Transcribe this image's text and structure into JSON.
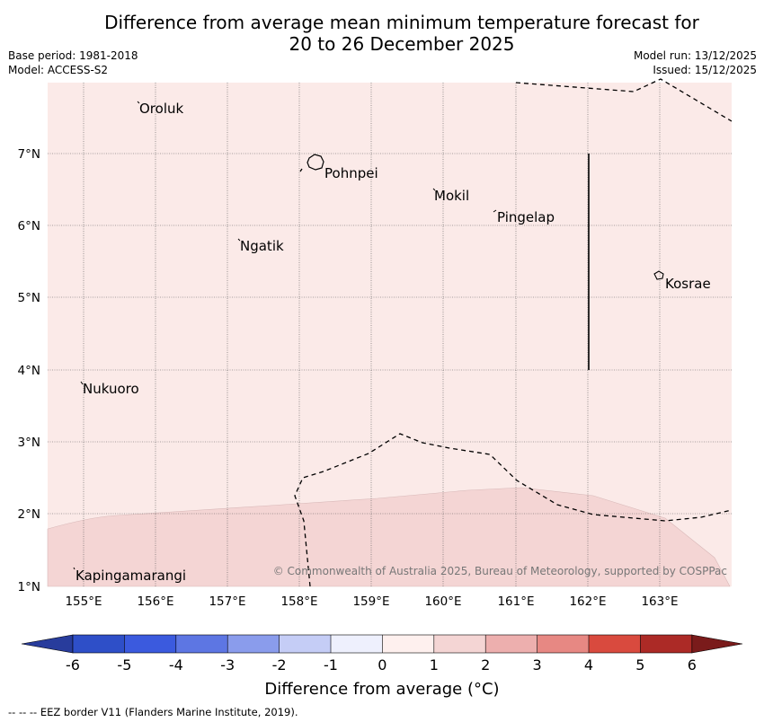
{
  "title": {
    "line1": "Difference from average mean minimum temperature forecast for",
    "line2": "20 to 26 December 2025"
  },
  "meta": {
    "base_period": "Base period: 1981-2018",
    "model": "Model: ACCESS-S2",
    "model_run": "Model run: 13/12/2025",
    "issued": "Issued: 15/12/2025"
  },
  "axes": {
    "lon_ticks": [
      "155°E",
      "156°E",
      "157°E",
      "158°E",
      "159°E",
      "160°E",
      "161°E",
      "162°E",
      "163°E"
    ],
    "lat_ticks": [
      "7°N",
      "6°N",
      "5°N",
      "4°N",
      "3°N",
      "2°N",
      "1°N"
    ]
  },
  "places": [
    {
      "id": "oroluk",
      "name": "Oroluk"
    },
    {
      "id": "pohnpei",
      "name": "Pohnpei"
    },
    {
      "id": "mokil",
      "name": "Mokil"
    },
    {
      "id": "pingelap",
      "name": "Pingelap"
    },
    {
      "id": "ngatik",
      "name": "Ngatik"
    },
    {
      "id": "kosrae",
      "name": "Kosrae"
    },
    {
      "id": "nukuoro",
      "name": "Nukuoro"
    },
    {
      "id": "kapingamarangi",
      "name": "Kapingamarangi"
    }
  ],
  "fill_colors": {
    "category_0_to_1": "#fbeae8",
    "category_1_to_2": "#f4d5d4"
  },
  "copyright": "© Commonwealth of Australia 2025, Bureau of Meteorology, supported by COSPPac",
  "colorbar": {
    "ticks": [
      "-6",
      "-5",
      "-4",
      "-3",
      "-2",
      "-1",
      "0",
      "1",
      "2",
      "3",
      "4",
      "5",
      "6"
    ],
    "colors": [
      "#283c9c",
      "#2e4fc8",
      "#3b5ade",
      "#5d76e3",
      "#8a9cec",
      "#c5cdf6",
      "#eef0fd",
      "#fef0ee",
      "#f4d5d4",
      "#edafae",
      "#e78883",
      "#d94a3e",
      "#ac2a26",
      "#7a1b1b"
    ],
    "label": "Difference from average (°C)"
  },
  "footnote": "--  --  -- EEZ border V11 (Flanders Marine Institute, 2019)."
}
